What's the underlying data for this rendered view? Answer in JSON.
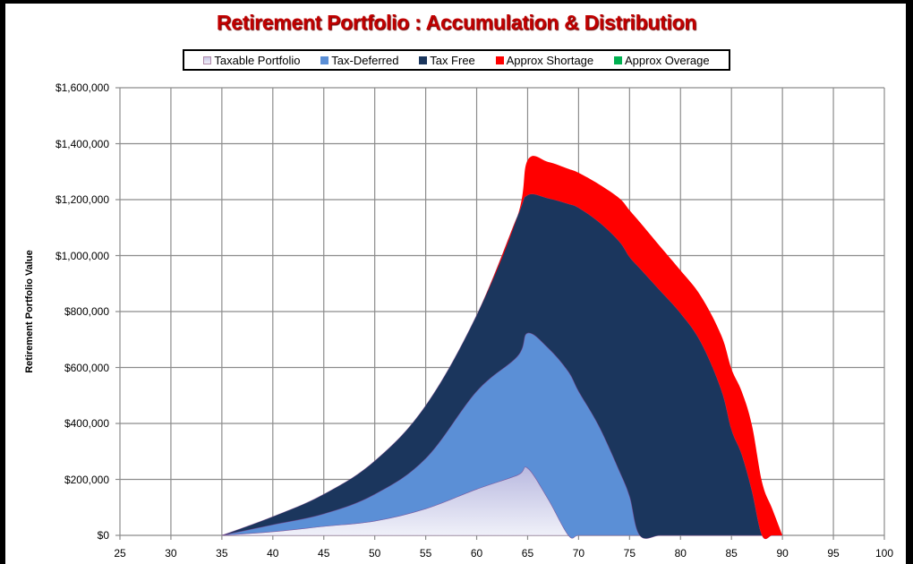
{
  "chart_data": {
    "type": "area",
    "stacked": true,
    "title": "Retirement Portfolio : Accumulation & Distribution",
    "xlabel": "",
    "ylabel": "Retirement Portfolio Value",
    "xlim": [
      25,
      100
    ],
    "ylim": [
      0,
      1600000
    ],
    "x_ticks": [
      25,
      30,
      35,
      40,
      45,
      50,
      55,
      60,
      65,
      70,
      75,
      80,
      85,
      90,
      95,
      100
    ],
    "y_ticks": [
      0,
      200000,
      400000,
      600000,
      800000,
      1000000,
      1200000,
      1400000,
      1600000
    ],
    "y_tick_labels": [
      "$0",
      "$200,000",
      "$400,000",
      "$600,000",
      "$800,000",
      "$1,000,000",
      "$1,200,000",
      "$1,400,000",
      "$1,600,000"
    ],
    "grid": true,
    "legend_position": "top",
    "x": [
      35,
      40,
      45,
      50,
      55,
      60,
      64,
      65,
      67,
      69,
      70,
      72,
      74,
      75,
      76,
      78,
      80,
      82,
      84,
      85,
      86,
      87,
      88,
      89,
      90
    ],
    "series": [
      {
        "name": "Taxable Portfolio",
        "color": "#d9dcf0",
        "values": [
          0,
          13000,
          32000,
          51000,
          95000,
          165000,
          215000,
          240000,
          130000,
          0,
          0,
          0,
          0,
          0,
          0,
          0,
          0,
          0,
          0,
          0,
          0,
          0,
          0,
          0,
          0
        ]
      },
      {
        "name": "Tax-Deferred",
        "color": "#5b8fd6",
        "values": [
          0,
          25000,
          45000,
          96000,
          180000,
          350000,
          425000,
          483000,
          540000,
          585000,
          515000,
          390000,
          230000,
          140000,
          0,
          0,
          0,
          0,
          0,
          0,
          0,
          0,
          0,
          0,
          0
        ]
      },
      {
        "name": "Tax Free",
        "color": "#1b365d",
        "values": [
          0,
          29000,
          70000,
          119000,
          189000,
          272000,
          500000,
          493000,
          535000,
          600000,
          656000,
          730000,
          820000,
          855000,
          955000,
          875000,
          794000,
          690000,
          520000,
          378000,
          290000,
          160000,
          0,
          0,
          0
        ]
      },
      {
        "name": "Approx Shortage",
        "color": "#ff0000",
        "values": [
          0,
          0,
          0,
          0,
          0,
          0,
          0,
          125000,
          130000,
          125000,
          125000,
          135000,
          155000,
          167000,
          165000,
          158000,
          153000,
          165000,
          195000,
          217000,
          225000,
          235000,
          190000,
          95000,
          0
        ]
      },
      {
        "name": "Approx Overage",
        "color": "#00b050",
        "values": [
          0,
          0,
          0,
          0,
          0,
          0,
          0,
          0,
          0,
          0,
          0,
          0,
          0,
          0,
          0,
          0,
          0,
          0,
          0,
          0,
          0,
          0,
          0,
          0,
          0
        ]
      }
    ]
  },
  "legend": [
    {
      "label": "Taxable Portfolio",
      "color": "#d9dcf0"
    },
    {
      "label": "Tax-Deferred",
      "color": "#5b8fd6"
    },
    {
      "label": "Tax Free",
      "color": "#1b365d"
    },
    {
      "label": "Approx Shortage",
      "color": "#ff0000"
    },
    {
      "label": "Approx Overage",
      "color": "#00b050"
    }
  ]
}
